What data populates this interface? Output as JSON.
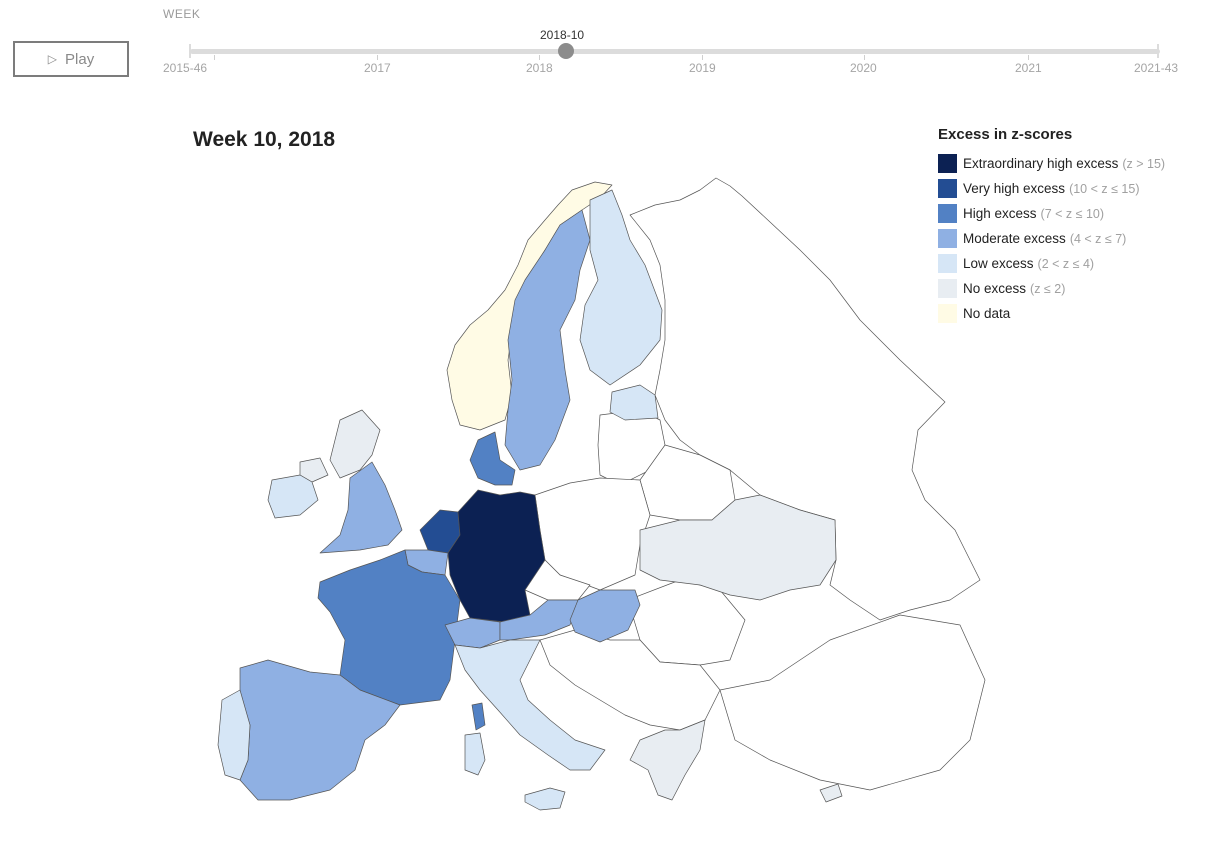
{
  "controls": {
    "play_label": "Play",
    "play_icon": "play-triangle-icon"
  },
  "timeline": {
    "label": "WEEK",
    "current": "2018-10",
    "start": "2015-46",
    "end": "2021-43",
    "years": [
      "2017",
      "2018",
      "2019",
      "2020",
      "2021"
    ]
  },
  "map": {
    "title": "Week 10, 2018",
    "colors": {
      "extraordinary": "#0c2153",
      "very_high": "#234d93",
      "high": "#5281c4",
      "moderate": "#8fb0e3",
      "low": "#d6e6f6",
      "none": "#e8edf2",
      "no_data": "#fffbe5",
      "outside": "#ffffff"
    },
    "countries": [
      {
        "name": "Germany",
        "category": "extraordinary"
      },
      {
        "name": "Netherlands",
        "category": "very_high"
      },
      {
        "name": "France",
        "category": "high"
      },
      {
        "name": "Denmark",
        "category": "high"
      },
      {
        "name": "Switzerland",
        "category": "high"
      },
      {
        "name": "Spain",
        "category": "moderate"
      },
      {
        "name": "Sweden",
        "category": "moderate"
      },
      {
        "name": "England",
        "category": "moderate"
      },
      {
        "name": "Belgium",
        "category": "moderate"
      },
      {
        "name": "Austria",
        "category": "moderate"
      },
      {
        "name": "Hungary",
        "category": "moderate"
      },
      {
        "name": "Finland",
        "category": "low"
      },
      {
        "name": "Portugal",
        "category": "low"
      },
      {
        "name": "Italy",
        "category": "low"
      },
      {
        "name": "Ireland",
        "category": "low"
      },
      {
        "name": "Estonia",
        "category": "low"
      },
      {
        "name": "Scotland",
        "category": "none"
      },
      {
        "name": "Northern Ireland",
        "category": "none"
      },
      {
        "name": "Ukraine",
        "category": "none"
      },
      {
        "name": "Greece",
        "category": "none"
      },
      {
        "name": "Norway",
        "category": "no_data"
      }
    ]
  },
  "legend": {
    "title": "Excess in z-scores",
    "items": [
      {
        "label": "Extraordinary high excess",
        "range": "(z > 15)",
        "color": "#0c2153"
      },
      {
        "label": "Very high excess",
        "range": "(10 < z ≤ 15)",
        "color": "#234d93"
      },
      {
        "label": "High excess",
        "range": "(7 < z ≤ 10)",
        "color": "#5281c4"
      },
      {
        "label": "Moderate excess",
        "range": "(4 < z ≤ 7)",
        "color": "#8fb0e3"
      },
      {
        "label": "Low excess",
        "range": "(2 < z ≤ 4)",
        "color": "#d6e6f6"
      },
      {
        "label": "No excess",
        "range": "(z ≤ 2)",
        "color": "#e8edf2"
      },
      {
        "label": "No data",
        "range": "",
        "color": "#fffbe5"
      }
    ]
  }
}
